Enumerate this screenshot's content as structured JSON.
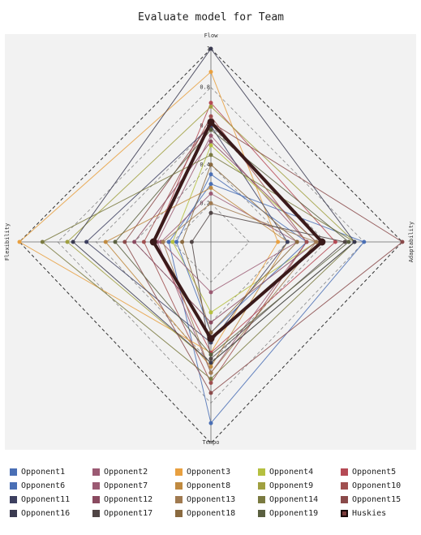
{
  "chart_data": {
    "type": "radar",
    "title": "Evaluate model for Team",
    "axes": [
      "Flow",
      "Adaptability",
      "Tempo",
      "Flexibility"
    ],
    "ticks": [
      "0.2",
      "0.4",
      "0.6",
      "0.8",
      "1"
    ],
    "range": [
      0,
      1
    ],
    "grid": "dashed",
    "legend_position": "bottom",
    "series": [
      {
        "name": "Opponent1",
        "color": "#4a6fb5",
        "values": [
          0.3,
          0.8,
          0.9,
          0.22
        ]
      },
      {
        "name": "Opponent2",
        "color": "#9b5a73",
        "values": [
          0.55,
          0.5,
          0.65,
          0.28
        ]
      },
      {
        "name": "Opponent3",
        "color": "#e8a040",
        "values": [
          0.88,
          0.35,
          0.55,
          1.0
        ]
      },
      {
        "name": "Opponent4",
        "color": "#b5c040",
        "values": [
          0.5,
          0.55,
          0.35,
          0.2
        ]
      },
      {
        "name": "Opponent5",
        "color": "#b54a55",
        "values": [
          0.72,
          0.65,
          0.55,
          0.3
        ]
      },
      {
        "name": "Opponent6",
        "color": "#4a6fb5",
        "values": [
          0.35,
          0.5,
          0.45,
          0.18
        ]
      },
      {
        "name": "Opponent7",
        "color": "#9b5a73",
        "values": [
          0.25,
          0.45,
          0.25,
          0.26
        ]
      },
      {
        "name": "Opponent8",
        "color": "#c08a40",
        "values": [
          0.28,
          0.4,
          0.62,
          0.55
        ]
      },
      {
        "name": "Opponent9",
        "color": "#a0a040",
        "values": [
          0.7,
          0.75,
          0.6,
          0.75
        ]
      },
      {
        "name": "Opponent10",
        "color": "#a05050",
        "values": [
          0.65,
          0.5,
          0.7,
          0.35
        ]
      },
      {
        "name": "Opponent11",
        "color": "#3d4060",
        "values": [
          0.6,
          0.4,
          0.5,
          0.65
        ]
      },
      {
        "name": "Opponent12",
        "color": "#8a4a60",
        "values": [
          0.52,
          0.55,
          0.4,
          0.4
        ]
      },
      {
        "name": "Opponent13",
        "color": "#a07a50",
        "values": [
          0.2,
          0.55,
          0.65,
          0.25
        ]
      },
      {
        "name": "Opponent14",
        "color": "#7a7a40",
        "values": [
          0.45,
          0.75,
          0.68,
          0.88
        ]
      },
      {
        "name": "Opponent15",
        "color": "#8a4a4a",
        "values": [
          0.62,
          1.0,
          0.75,
          0.45
        ]
      },
      {
        "name": "Opponent16",
        "color": "#3a3a50",
        "values": [
          1.0,
          0.75,
          0.6,
          0.72
        ]
      },
      {
        "name": "Opponent17",
        "color": "#504545",
        "values": [
          0.15,
          0.7,
          0.58,
          0.1
        ]
      },
      {
        "name": "Opponent18",
        "color": "#8a6a40",
        "values": [
          0.4,
          0.45,
          0.45,
          0.15
        ]
      },
      {
        "name": "Opponent19",
        "color": "#5a6040",
        "values": [
          0.58,
          0.72,
          0.56,
          0.5
        ]
      },
      {
        "name": "Huskies",
        "color": "#3a1a1a",
        "values": [
          0.62,
          0.58,
          0.48,
          0.3
        ],
        "highlight": true
      }
    ]
  }
}
